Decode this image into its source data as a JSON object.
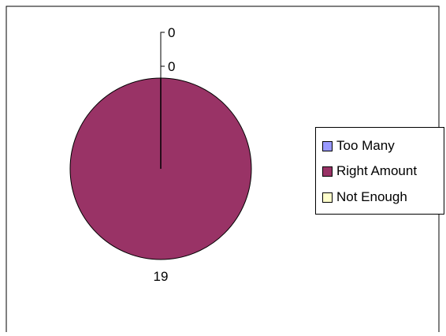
{
  "chart_data": {
    "type": "pie",
    "title": "",
    "categories": [
      "Too Many",
      "Right Amount",
      "Not Enough"
    ],
    "values": [
      0,
      19,
      0
    ],
    "data_labels": [
      "0",
      "19",
      "0"
    ],
    "colors": [
      "#9999FF",
      "#993366",
      "#FFFFCC"
    ],
    "legend_position": "right"
  }
}
